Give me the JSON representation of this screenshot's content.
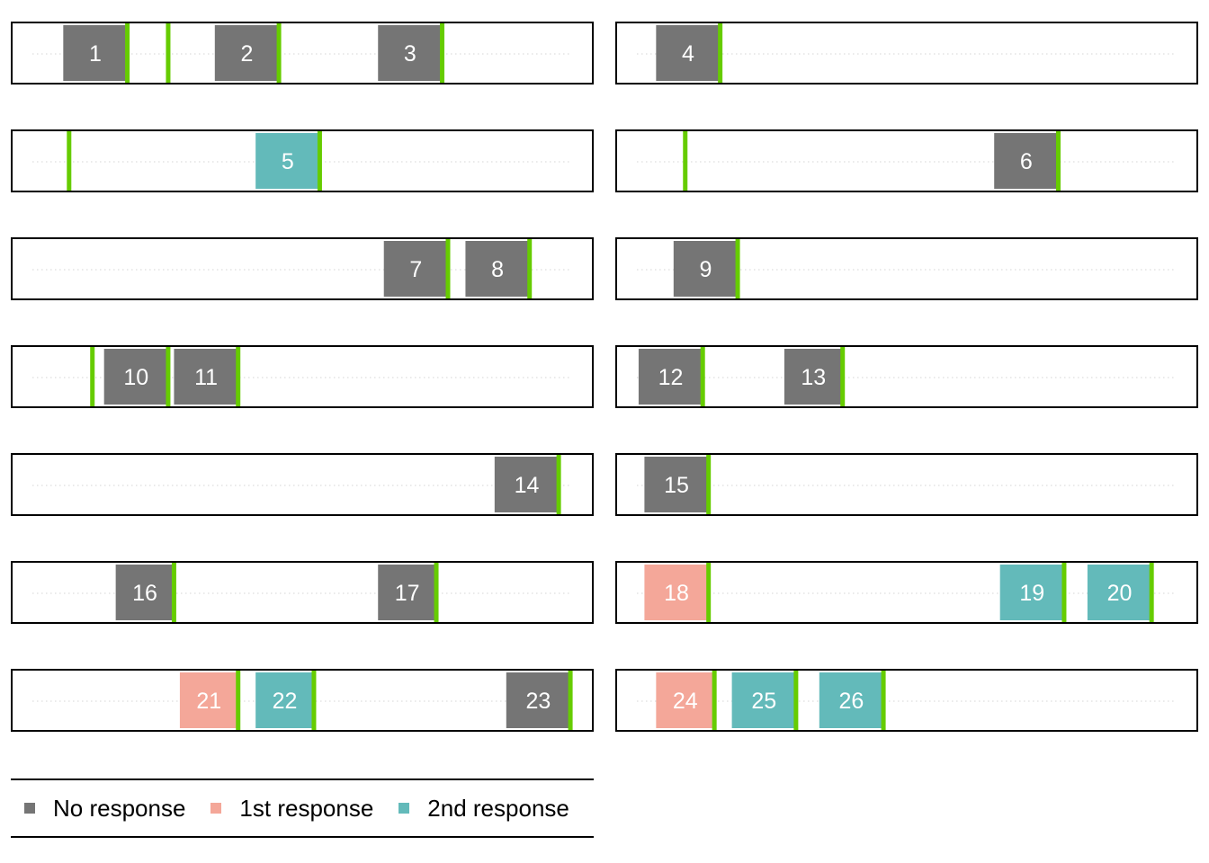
{
  "chart_data": {
    "type": "timeline",
    "legend": {
      "placement": "bottom-left",
      "entries": [
        {
          "key": "none",
          "label": "No response",
          "color": "#757575"
        },
        {
          "key": "first",
          "label": "1st response",
          "color": "#F4A799"
        },
        {
          "key": "second",
          "label": "2nd response",
          "color": "#63BABA"
        }
      ]
    },
    "marker_color": "#66CC00",
    "grid": "dotted-midline",
    "x_range": [
      0,
      100
    ],
    "panels": [
      {
        "column": 1,
        "row": 1,
        "events": [
          {
            "label": "1",
            "start": 9,
            "end": 20,
            "status": "none"
          },
          {
            "label": "2",
            "start": 35,
            "end": 46,
            "status": "none"
          },
          {
            "label": "3",
            "start": 63,
            "end": 74,
            "status": "none"
          }
        ],
        "markers": [
          20,
          27,
          46,
          74
        ]
      },
      {
        "column": 2,
        "row": 1,
        "events": [
          {
            "label": "4",
            "start": 7,
            "end": 18,
            "status": "none"
          }
        ],
        "markers": [
          18
        ]
      },
      {
        "column": 1,
        "row": 2,
        "events": [
          {
            "label": "5",
            "start": 42,
            "end": 53,
            "status": "second"
          }
        ],
        "markers": [
          10,
          53
        ]
      },
      {
        "column": 2,
        "row": 2,
        "events": [
          {
            "label": "6",
            "start": 65,
            "end": 76,
            "status": "none"
          }
        ],
        "markers": [
          12,
          76
        ]
      },
      {
        "column": 1,
        "row": 3,
        "events": [
          {
            "label": "7",
            "start": 64,
            "end": 75,
            "status": "none"
          },
          {
            "label": "8",
            "start": 78,
            "end": 89,
            "status": "none"
          }
        ],
        "markers": [
          75,
          89
        ]
      },
      {
        "column": 2,
        "row": 3,
        "events": [
          {
            "label": "9",
            "start": 10,
            "end": 21,
            "status": "none"
          }
        ],
        "markers": [
          21
        ]
      },
      {
        "column": 1,
        "row": 4,
        "events": [
          {
            "label": "10",
            "start": 16,
            "end": 27,
            "status": "none"
          },
          {
            "label": "11",
            "start": 28,
            "end": 39,
            "status": "none"
          }
        ],
        "markers": [
          14,
          27,
          39
        ]
      },
      {
        "column": 2,
        "row": 4,
        "events": [
          {
            "label": "12",
            "start": 4,
            "end": 15,
            "status": "none"
          },
          {
            "label": "13",
            "start": 29,
            "end": 39,
            "status": "none"
          }
        ],
        "markers": [
          15,
          39
        ]
      },
      {
        "column": 1,
        "row": 5,
        "events": [
          {
            "label": "14",
            "start": 83,
            "end": 94,
            "status": "none"
          }
        ],
        "markers": [
          94
        ]
      },
      {
        "column": 2,
        "row": 5,
        "events": [
          {
            "label": "15",
            "start": 5,
            "end": 16,
            "status": "none"
          }
        ],
        "markers": [
          16
        ]
      },
      {
        "column": 1,
        "row": 6,
        "events": [
          {
            "label": "16",
            "start": 18,
            "end": 28,
            "status": "none"
          },
          {
            "label": "17",
            "start": 63,
            "end": 73,
            "status": "none"
          }
        ],
        "markers": [
          28,
          73
        ]
      },
      {
        "column": 2,
        "row": 6,
        "events": [
          {
            "label": "18",
            "start": 5,
            "end": 16,
            "status": "first"
          },
          {
            "label": "19",
            "start": 66,
            "end": 77,
            "status": "second"
          },
          {
            "label": "20",
            "start": 81,
            "end": 92,
            "status": "second"
          }
        ],
        "markers": [
          16,
          77,
          92
        ]
      },
      {
        "column": 1,
        "row": 7,
        "events": [
          {
            "label": "21",
            "start": 29,
            "end": 39,
            "status": "first"
          },
          {
            "label": "22",
            "start": 42,
            "end": 52,
            "status": "second"
          },
          {
            "label": "23",
            "start": 85,
            "end": 96,
            "status": "none"
          }
        ],
        "markers": [
          39,
          52,
          96
        ]
      },
      {
        "column": 2,
        "row": 7,
        "events": [
          {
            "label": "24",
            "start": 7,
            "end": 17,
            "status": "first"
          },
          {
            "label": "25",
            "start": 20,
            "end": 31,
            "status": "second"
          },
          {
            "label": "26",
            "start": 35,
            "end": 46,
            "status": "second"
          }
        ],
        "markers": [
          17,
          31,
          46
        ]
      }
    ]
  }
}
